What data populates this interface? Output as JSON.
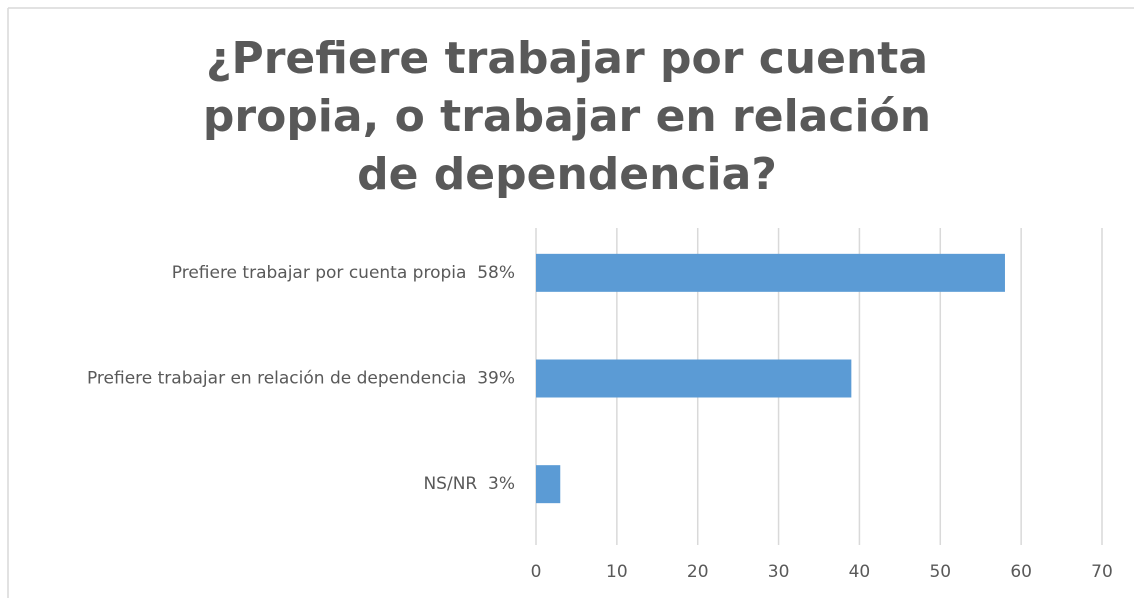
{
  "chart_data": {
    "type": "hbar",
    "title": "¿Prefiere trabajar por cuenta propia, o trabajar en relación de dependencia?",
    "categories": [
      "Prefiere trabajar por cuenta propia  58%",
      "Prefiere trabajar en relación de dependencia  39%",
      "NS/NR  3%"
    ],
    "values": [
      58,
      39,
      3
    ],
    "color": "#5b9bd5",
    "xlim": [
      0,
      70
    ],
    "xticks": [
      0,
      10,
      20,
      30,
      40,
      50,
      60,
      70
    ],
    "grid": true
  }
}
